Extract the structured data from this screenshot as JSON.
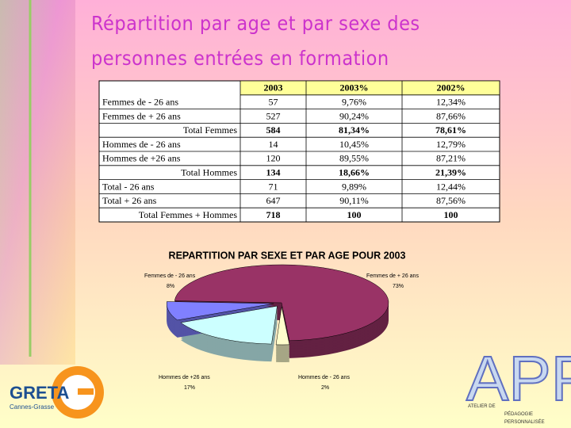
{
  "title": [
    "Répartition par age et par sexe des",
    "personnes entrées en formation"
  ],
  "table": {
    "header": [
      "2003",
      "2003%",
      "2002%"
    ],
    "rows": [
      [
        "Femmes de - 26 ans",
        "57",
        "9,76%",
        "12,34%"
      ],
      [
        "Femmes de + 26 ans",
        "527",
        "90,24%",
        "87,66%"
      ],
      [
        "Total Femmes",
        "584",
        "81,34%",
        "78,61%"
      ],
      [
        "Hommes de - 26 ans",
        "14",
        "10,45%",
        "12,79%"
      ],
      [
        "Hommes de +26 ans",
        "120",
        "89,55%",
        "87,21%"
      ],
      [
        "Total Hommes",
        "134",
        "18,66%",
        "21,39%"
      ],
      [
        "Total - 26 ans",
        "71",
        "9,89%",
        "12,44%"
      ],
      [
        "Total + 26 ans",
        "647",
        "90,11%",
        "87,56%"
      ],
      [
        "Total Femmes + Hommes",
        "718",
        "100",
        "100"
      ]
    ]
  },
  "chart_data": {
    "type": "pie",
    "title": "REPARTITION PAR SEXE ET PAR AGE POUR 2003",
    "categories": [
      "Femmes de - 26 ans",
      "Femmes de + 26 ans",
      "Hommes de - 26 ans",
      "Hommes de +26 ans"
    ],
    "values": [
      8,
      73,
      2,
      17
    ],
    "value_labels": [
      "8%",
      "73%",
      "2%",
      "17%"
    ],
    "colors": [
      "#8080ff",
      "#993366",
      "#ffffcc",
      "#ccffff"
    ]
  },
  "logos": {
    "greta": {
      "name": "GRETA",
      "place": "Cannes-Grasse"
    },
    "app": {
      "name": "APP",
      "lines": [
        "ATELIER DE",
        "PÉDAGOGIE",
        "PERSONNALISÉE"
      ]
    }
  }
}
